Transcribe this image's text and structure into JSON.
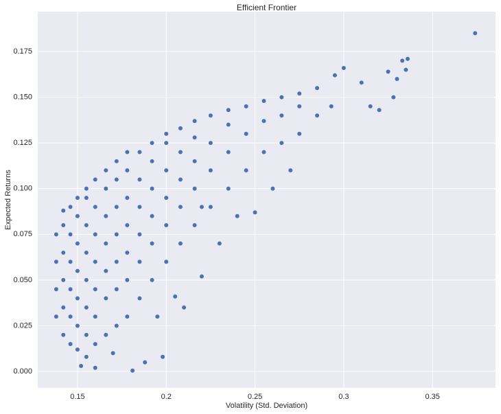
{
  "chart_data": {
    "type": "scatter",
    "title": "Efficient Frontier",
    "x_label": "Volatility (Std. Deviation)",
    "y_label": "Expected Returns",
    "color": "#4c72b0",
    "grid": true,
    "xlim": [
      0.1276,
      0.3855
    ],
    "ylim": [
      -0.009,
      0.1968
    ],
    "xticks": [
      0.15,
      0.2,
      0.25,
      0.3,
      0.35
    ],
    "yticks": [
      {
        "value": 0,
        "label": "0.000"
      },
      0.025,
      {
        "value": 0.05,
        "label": "0.050"
      },
      0.075,
      {
        "value": 0.1,
        "label": "0.100"
      },
      0.125,
      {
        "value": 0.15,
        "label": "0.150"
      },
      0.175
    ],
    "x": [
      0.138,
      0.138,
      0.138,
      0.138,
      0.142,
      0.142,
      0.142,
      0.142,
      0.142,
      0.142,
      0.146,
      0.146,
      0.146,
      0.146,
      0.146,
      0.146,
      0.15,
      0.15,
      0.15,
      0.15,
      0.15,
      0.15,
      0.15,
      0.155,
      0.155,
      0.155,
      0.155,
      0.155,
      0.155,
      0.155,
      0.155,
      0.16,
      0.16,
      0.16,
      0.16,
      0.16,
      0.16,
      0.16,
      0.166,
      0.166,
      0.166,
      0.166,
      0.166,
      0.166,
      0.166,
      0.172,
      0.172,
      0.172,
      0.172,
      0.172,
      0.172,
      0.172,
      0.178,
      0.178,
      0.178,
      0.178,
      0.178,
      0.178,
      0.178,
      0.185,
      0.185,
      0.185,
      0.185,
      0.185,
      0.185,
      0.192,
      0.192,
      0.192,
      0.192,
      0.192,
      0.192,
      0.2,
      0.2,
      0.2,
      0.2,
      0.2,
      0.2,
      0.208,
      0.208,
      0.208,
      0.208,
      0.208,
      0.216,
      0.216,
      0.216,
      0.216,
      0.216,
      0.225,
      0.225,
      0.225,
      0.225,
      0.235,
      0.235,
      0.235,
      0.235,
      0.245,
      0.245,
      0.245,
      0.255,
      0.255,
      0.255,
      0.265,
      0.265,
      0.265,
      0.275,
      0.275,
      0.275,
      0.285,
      0.285,
      0.181,
      0.188,
      0.198,
      0.21,
      0.22,
      0.205,
      0.22,
      0.295,
      0.3,
      0.31,
      0.315,
      0.32,
      0.325,
      0.33,
      0.328,
      0.333,
      0.336,
      0.335,
      0.374,
      0.293,
      0.27,
      0.26,
      0.25,
      0.24,
      0.23,
      0.195,
      0.17,
      0.16,
      0.152
    ],
    "values": [
      0.03,
      0.045,
      0.06,
      0.075,
      0.02,
      0.035,
      0.05,
      0.065,
      0.08,
      0.088,
      0.015,
      0.03,
      0.045,
      0.06,
      0.075,
      0.09,
      0.012,
      0.025,
      0.04,
      0.055,
      0.07,
      0.085,
      0.095,
      0.008,
      0.02,
      0.035,
      0.05,
      0.065,
      0.08,
      0.095,
      0.1,
      0.015,
      0.03,
      0.045,
      0.06,
      0.075,
      0.09,
      0.105,
      0.02,
      0.04,
      0.055,
      0.07,
      0.085,
      0.1,
      0.11,
      0.025,
      0.045,
      0.06,
      0.075,
      0.09,
      0.105,
      0.115,
      0.03,
      0.05,
      0.065,
      0.08,
      0.095,
      0.11,
      0.12,
      0.04,
      0.06,
      0.075,
      0.09,
      0.105,
      0.12,
      0.05,
      0.07,
      0.085,
      0.1,
      0.115,
      0.125,
      0.06,
      0.08,
      0.095,
      0.11,
      0.125,
      0.13,
      0.07,
      0.09,
      0.105,
      0.12,
      0.133,
      0.08,
      0.1,
      0.115,
      0.128,
      0.137,
      0.09,
      0.11,
      0.125,
      0.14,
      0.1,
      0.12,
      0.135,
      0.143,
      0.11,
      0.13,
      0.145,
      0.12,
      0.137,
      0.148,
      0.125,
      0.14,
      0.15,
      0.13,
      0.145,
      0.152,
      0.14,
      0.155,
      0.0005,
      0.005,
      0.008,
      0.035,
      0.052,
      0.041,
      0.09,
      0.162,
      0.166,
      0.158,
      0.145,
      0.143,
      0.164,
      0.16,
      0.15,
      0.17,
      0.171,
      0.165,
      0.185,
      0.145,
      0.11,
      0.1,
      0.087,
      0.085,
      0.07,
      0.03,
      0.01,
      0.002,
      0.003
    ]
  }
}
